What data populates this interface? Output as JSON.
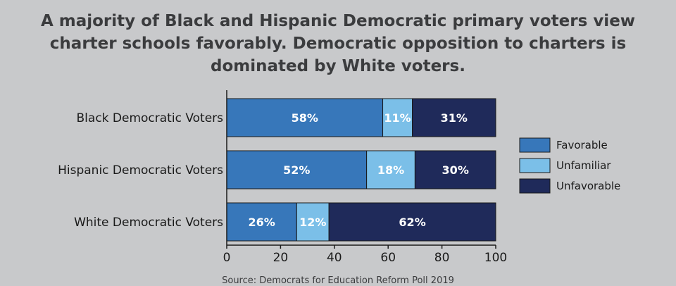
{
  "chart_data": {
    "type": "bar",
    "orientation": "horizontal",
    "stacked": true,
    "title_lines": [
      "A majority of Black and Hispanic Democratic primary voters view",
      "charter schools favorably. Democratic opposition to charters is",
      "dominated by White voters."
    ],
    "categories": [
      "Black Democratic Voters",
      "Hispanic Democratic Voters",
      "White Democratic Voters"
    ],
    "series": [
      {
        "name": "Favorable",
        "values": [
          58,
          52,
          26
        ],
        "labels": [
          "58%",
          "52%",
          "26%"
        ],
        "color": "#3777ba"
      },
      {
        "name": "Unfamiliar",
        "values": [
          11,
          18,
          12
        ],
        "labels": [
          "11%",
          "18%",
          "12%"
        ],
        "color": "#7bbfe8"
      },
      {
        "name": "Unfavorable",
        "values": [
          31,
          30,
          62
        ],
        "labels": [
          "31%",
          "30%",
          "62%"
        ],
        "color": "#1f2a5a"
      }
    ],
    "xlim": [
      0,
      100
    ],
    "xticks": [
      0,
      20,
      40,
      60,
      80,
      100
    ],
    "legend_position": "right",
    "grid": false
  },
  "source_text": "Source: Democrats for Education Reform Poll 2019"
}
